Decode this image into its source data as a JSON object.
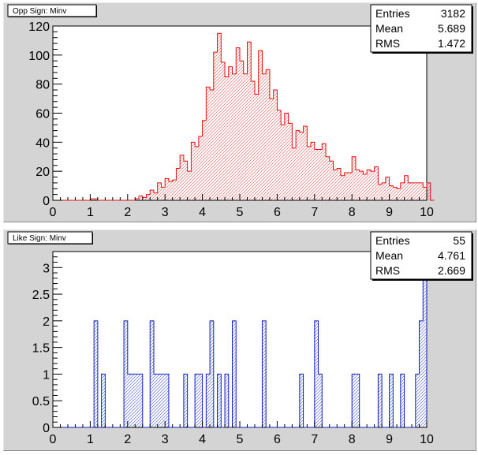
{
  "chart_data": [
    {
      "type": "bar",
      "title": "Opp Sign: Minv",
      "xlim": [
        0,
        10
      ],
      "ylim": [
        0,
        120
      ],
      "xticks": [
        "0",
        "1",
        "2",
        "3",
        "4",
        "5",
        "6",
        "7",
        "8",
        "9",
        "10"
      ],
      "yticks": [
        "0",
        "20",
        "40",
        "60",
        "80",
        "100",
        "120"
      ],
      "bin_width": 0.1,
      "bin_start": 0,
      "values": [
        0,
        0,
        0,
        0,
        0,
        0,
        0,
        0,
        0,
        0,
        1,
        1,
        0,
        0,
        0,
        0,
        0,
        0,
        0,
        0,
        0,
        0,
        1,
        3,
        2,
        4,
        7,
        5,
        12,
        9,
        15,
        13,
        14,
        22,
        31,
        27,
        20,
        40,
        37,
        44,
        55,
        78,
        76,
        102,
        115,
        95,
        85,
        92,
        87,
        105,
        96,
        87,
        109,
        82,
        73,
        103,
        87,
        90,
        70,
        76,
        62,
        52,
        60,
        53,
        36,
        48,
        47,
        51,
        37,
        40,
        35,
        35,
        39,
        30,
        27,
        21,
        22,
        17,
        19,
        19,
        30,
        21,
        20,
        18,
        21,
        20,
        23,
        11,
        12,
        16,
        10,
        9,
        8,
        12,
        17,
        12,
        12,
        12,
        12,
        9,
        12,
        0
      ],
      "stats": {
        "Entries": "3182",
        "Mean": "5.689",
        "RMS": "1.472"
      },
      "colors": {
        "line": "#e01010",
        "hatch": "#e05050"
      }
    },
    {
      "type": "bar",
      "title": "Like Sign: Minv",
      "xlim": [
        0,
        10
      ],
      "ylim": [
        0,
        3.3
      ],
      "xticks": [
        "0",
        "1",
        "2",
        "3",
        "4",
        "5",
        "6",
        "7",
        "8",
        "9",
        "10"
      ],
      "yticks": [
        "0",
        "0.5",
        "1",
        "1.5",
        "2",
        "2.5",
        "3"
      ],
      "bin_width": 0.1,
      "bin_start": 0,
      "values": [
        0,
        0,
        0,
        0,
        0,
        0,
        0,
        0,
        0,
        0,
        0,
        2,
        0,
        1,
        0,
        0,
        0,
        0,
        0,
        2,
        1,
        1,
        1,
        1,
        0,
        0,
        2,
        1,
        1,
        1,
        1,
        0,
        0,
        0,
        0,
        1,
        0,
        0,
        1,
        1,
        0,
        1,
        2,
        0,
        1,
        0,
        1,
        0,
        2,
        0,
        0,
        0,
        0,
        0,
        0,
        0,
        2,
        0,
        0,
        0,
        0,
        0,
        0,
        0,
        0,
        0,
        1,
        0,
        0,
        0,
        2,
        1,
        0,
        0,
        0,
        0,
        0,
        0,
        0,
        0,
        1,
        1,
        0,
        0,
        0,
        0,
        0,
        1,
        0,
        0,
        1,
        0,
        0,
        1,
        0,
        0,
        0,
        1,
        2,
        3
      ],
      "stats": {
        "Entries": "55",
        "Mean": "4.761",
        "RMS": "2.669"
      },
      "colors": {
        "line": "#1020c0",
        "hatch": "#4050d0"
      }
    }
  ]
}
